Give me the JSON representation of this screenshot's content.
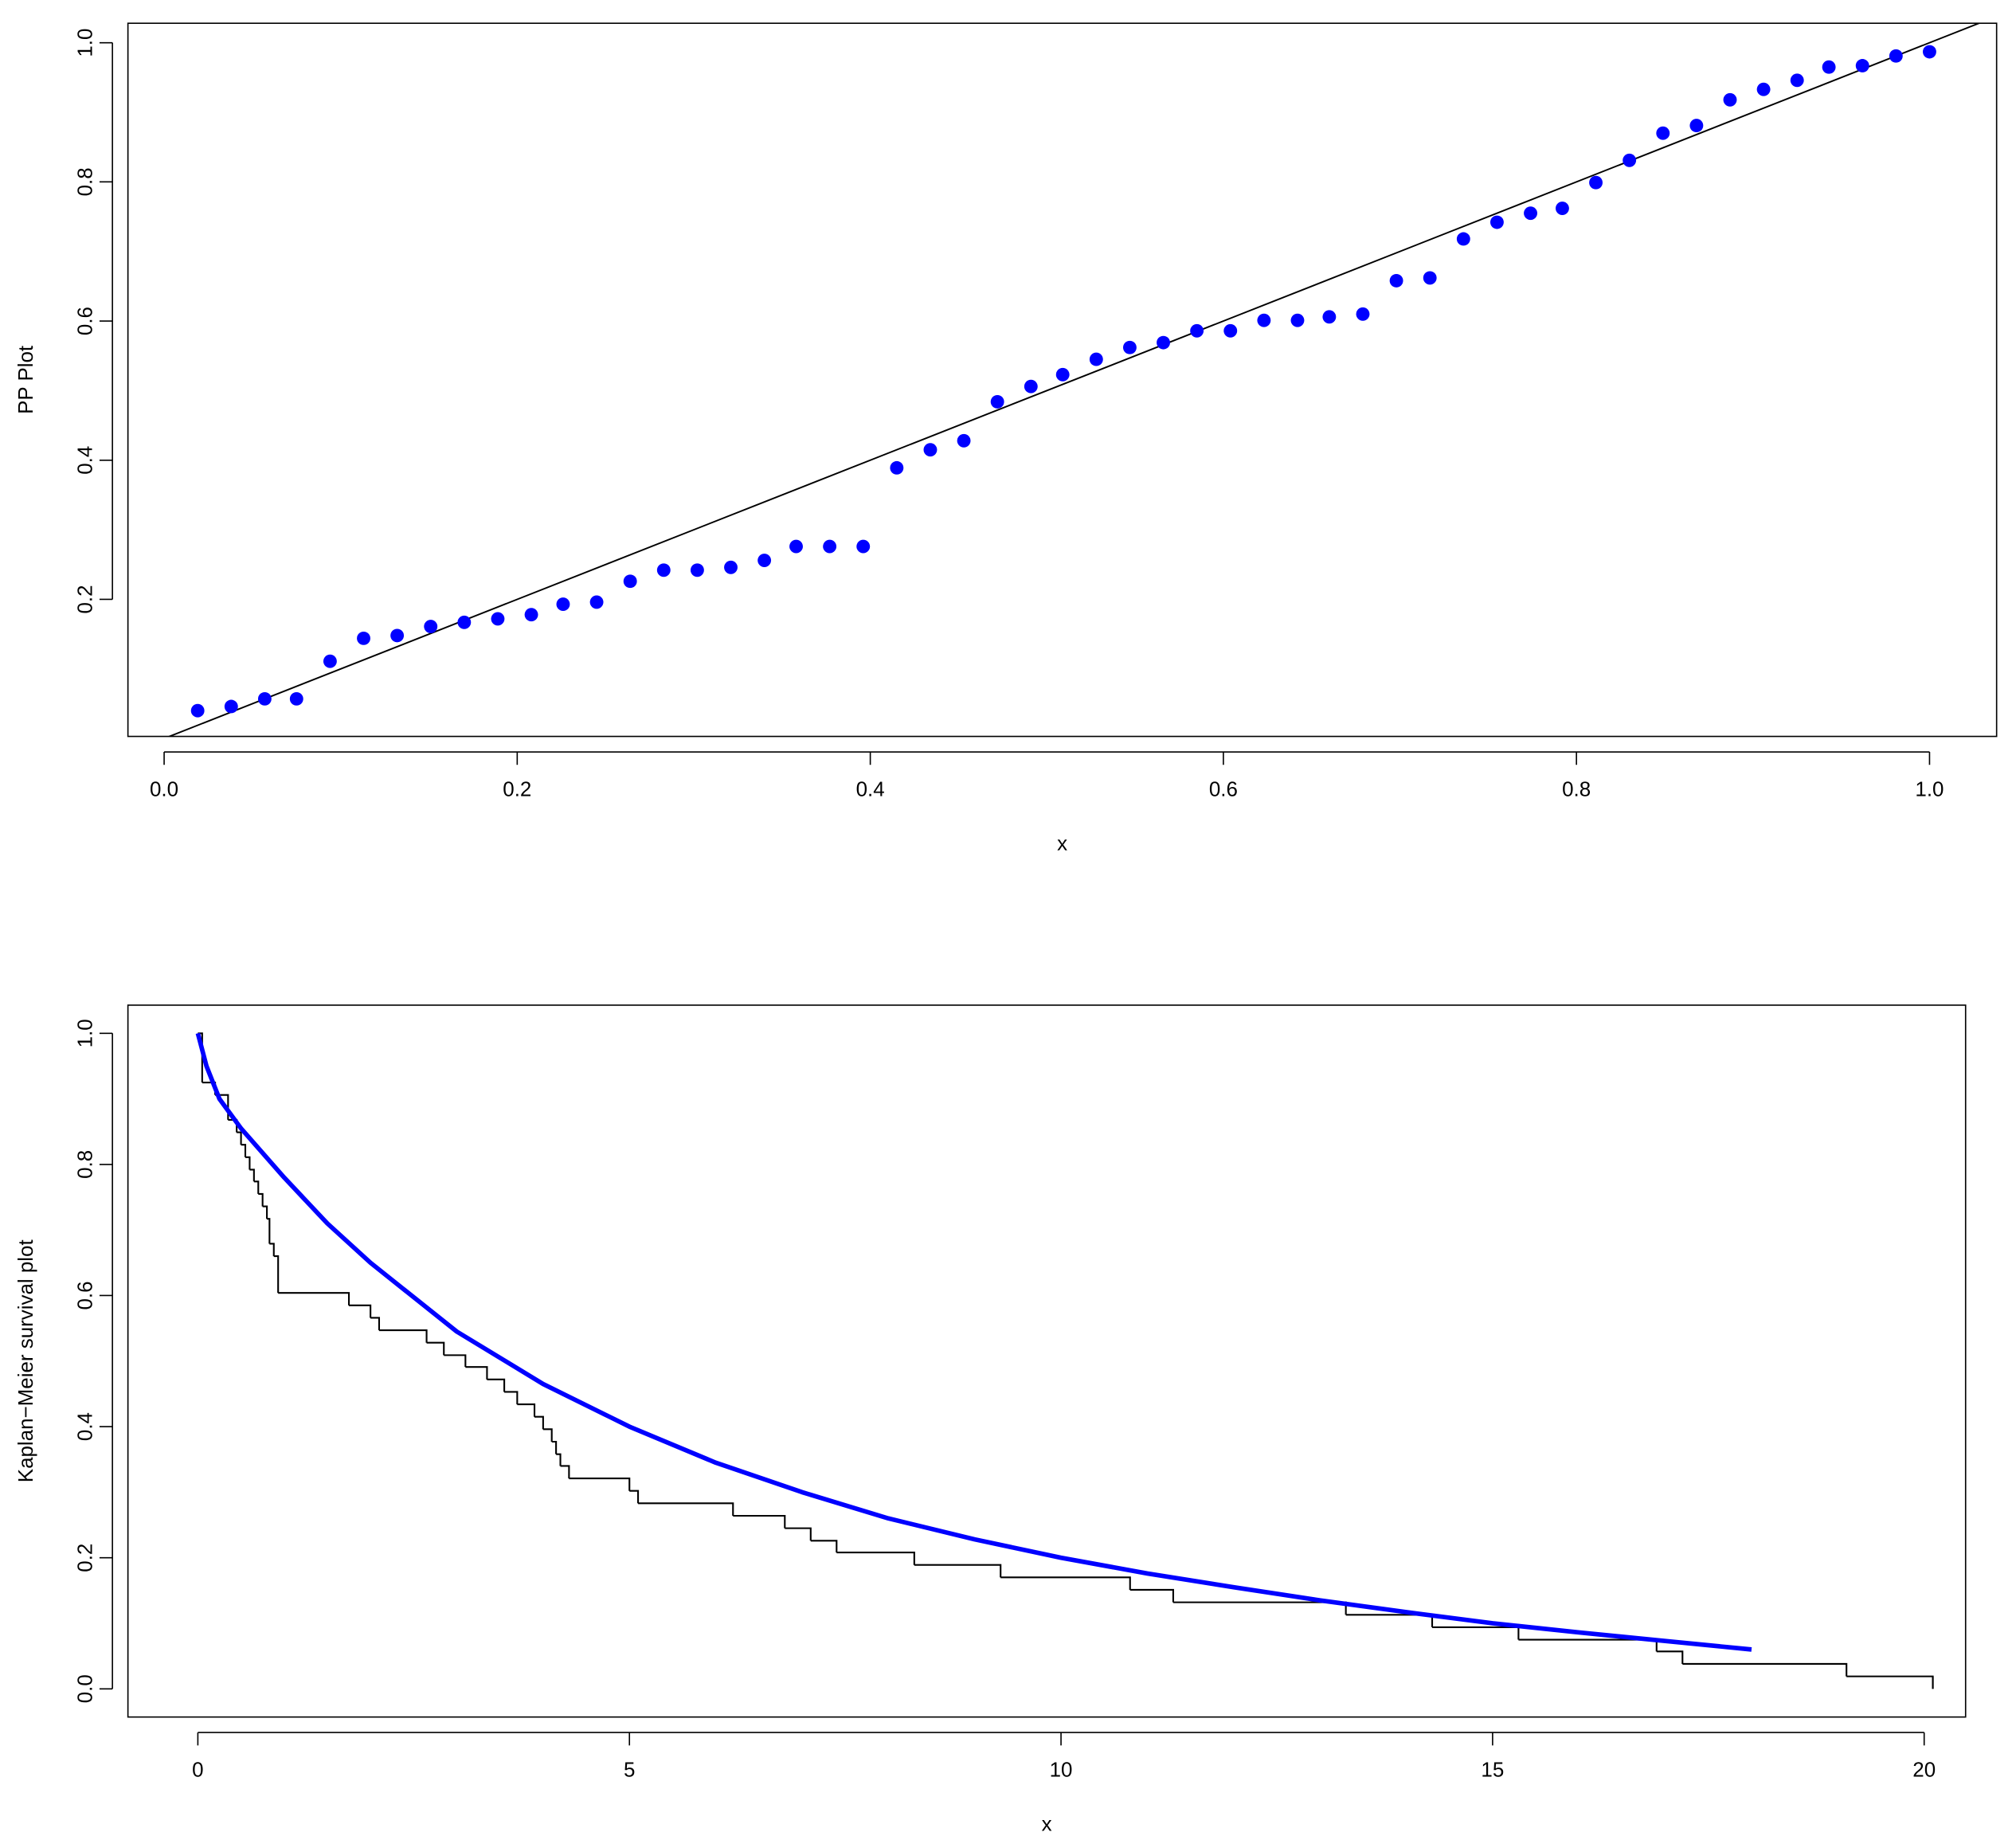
{
  "chart_data": [
    {
      "type": "scatter",
      "x_label": "x",
      "y_label": "PP Plot",
      "xlim": [
        -0.0205,
        1.038
      ],
      "ylim": [
        0.003,
        1.028
      ],
      "xticks": [
        {
          "value": 0,
          "label": "0.0"
        },
        {
          "value": 0.2,
          "label": "0.2"
        },
        {
          "value": 0.4,
          "label": "0.4"
        },
        {
          "value": 0.6,
          "label": "0.6"
        },
        {
          "value": 0.8,
          "label": "0.8"
        },
        {
          "value": 1,
          "label": "1.0"
        }
      ],
      "yticks": [
        0.2,
        0.4,
        0.6,
        0.8,
        {
          "value": 1,
          "label": "1.0"
        }
      ],
      "abline": {
        "intercept": 0,
        "slope": 1,
        "color": "#000000"
      },
      "series": [
        {
          "color": "#0000ff",
          "x": [
            0.019,
            0.038,
            0.057,
            0.075,
            0.094,
            0.113,
            0.132,
            0.151,
            0.17,
            0.189,
            0.208,
            0.226,
            0.245,
            0.264,
            0.283,
            0.302,
            0.321,
            0.34,
            0.358,
            0.377,
            0.396,
            0.415,
            0.434,
            0.453,
            0.472,
            0.491,
            0.509,
            0.528,
            0.547,
            0.566,
            0.585,
            0.604,
            0.623,
            0.642,
            0.66,
            0.679,
            0.698,
            0.717,
            0.736,
            0.755,
            0.774,
            0.792,
            0.811,
            0.83,
            0.849,
            0.868,
            0.887,
            0.906,
            0.925,
            0.943,
            0.962,
            0.981,
            1.0
          ],
          "values": [
            0.04,
            0.046,
            0.057,
            0.057,
            0.111,
            0.144,
            0.148,
            0.161,
            0.167,
            0.172,
            0.178,
            0.193,
            0.196,
            0.226,
            0.242,
            0.242,
            0.246,
            0.256,
            0.276,
            0.276,
            0.276,
            0.389,
            0.415,
            0.428,
            0.484,
            0.506,
            0.523,
            0.545,
            0.562,
            0.569,
            0.586,
            0.586,
            0.601,
            0.601,
            0.606,
            0.61,
            0.658,
            0.662,
            0.718,
            0.742,
            0.755,
            0.762,
            0.799,
            0.831,
            0.87,
            0.881,
            0.918,
            0.933,
            0.946,
            0.965,
            0.967,
            0.981,
            0.987
          ]
        }
      ]
    },
    {
      "type": "line",
      "x_label": "x",
      "y_label": "Kaplan−Meier survival plot",
      "xlim": [
        -0.81,
        20.48
      ],
      "ylim": [
        -0.043,
        1.043
      ],
      "xticks": [
        0,
        5,
        10,
        15,
        20
      ],
      "yticks": [
        {
          "value": 0,
          "label": "0.0"
        },
        0.2,
        0.4,
        0.6,
        0.8,
        {
          "value": 1,
          "label": "1.0"
        }
      ],
      "series": [
        {
          "color": "#000000",
          "step": true,
          "x": [
            0,
            0.05,
            0.2,
            0.35,
            0.45,
            0.5,
            0.55,
            0.6,
            0.65,
            0.7,
            0.75,
            0.8,
            0.83,
            0.88,
            0.93,
            1.75,
            2.0,
            2.1,
            2.65,
            2.85,
            3.1,
            3.35,
            3.55,
            3.7,
            3.9,
            4.0,
            4.1,
            4.15,
            4.2,
            4.3,
            5.0,
            5.1,
            6.2,
            6.8,
            7.1,
            7.4,
            8.3,
            9.3,
            10.8,
            11.3,
            13.3,
            14.3,
            15.3,
            16.9,
            17.2,
            19.1,
            20.1
          ],
          "values": [
            1.0,
            0.925,
            0.906,
            0.868,
            0.849,
            0.83,
            0.811,
            0.792,
            0.774,
            0.755,
            0.736,
            0.717,
            0.679,
            0.66,
            0.604,
            0.585,
            0.566,
            0.547,
            0.528,
            0.509,
            0.491,
            0.472,
            0.453,
            0.434,
            0.415,
            0.396,
            0.377,
            0.358,
            0.34,
            0.321,
            0.302,
            0.283,
            0.264,
            0.245,
            0.226,
            0.208,
            0.189,
            0.17,
            0.151,
            0.132,
            0.113,
            0.094,
            0.075,
            0.057,
            0.038,
            0.019,
            0.0
          ]
        },
        {
          "color": "#0000ff",
          "x": [
            0,
            0.1,
            0.25,
            0.5,
            1,
            1.5,
            2,
            3,
            4,
            5,
            6,
            7,
            8,
            9,
            10,
            11,
            12,
            13,
            14,
            15,
            16,
            17,
            18
          ],
          "values": [
            1.0,
            0.95,
            0.9,
            0.855,
            0.78,
            0.71,
            0.65,
            0.545,
            0.465,
            0.4,
            0.345,
            0.3,
            0.26,
            0.228,
            0.2,
            0.176,
            0.155,
            0.135,
            0.117,
            0.1,
            0.086,
            0.073,
            0.06
          ]
        }
      ]
    }
  ]
}
